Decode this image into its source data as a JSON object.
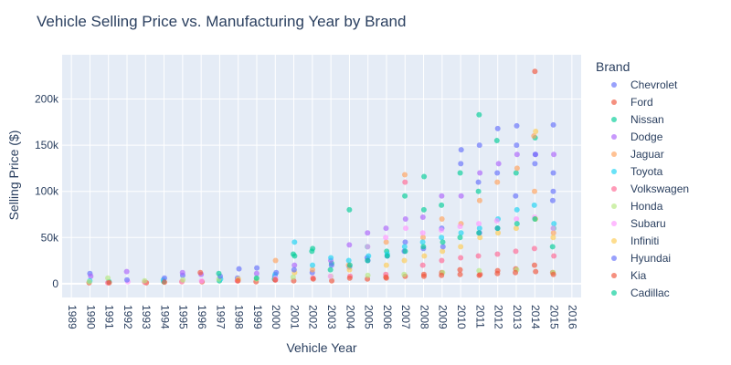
{
  "chart_data": {
    "type": "scatter",
    "title": "Vehicle Selling Price vs. Manufacturing Year by Brand",
    "xlabel": "Vehicle Year",
    "ylabel": "Selling Price ($)",
    "xlim": [
      1988.5,
      2016.5
    ],
    "ylim": [
      -15000,
      248000
    ],
    "x_ticks": [
      1989,
      1990,
      1991,
      1992,
      1993,
      1994,
      1995,
      1996,
      1997,
      1998,
      1999,
      2000,
      2001,
      2002,
      2003,
      2004,
      2005,
      2006,
      2007,
      2008,
      2009,
      2010,
      2011,
      2012,
      2013,
      2014,
      2015,
      2016
    ],
    "y_ticks": [
      0,
      50000,
      100000,
      150000,
      200000
    ],
    "y_tick_labels": [
      "0",
      "50k",
      "100k",
      "150k",
      "200k"
    ],
    "grid": true,
    "legend": {
      "title": "Brand",
      "placement": "right"
    },
    "series": [
      {
        "name": "Chevrolet",
        "color": "#636efa",
        "points": [
          [
            1990,
            11000
          ],
          [
            1995,
            9000
          ],
          [
            1998,
            6000
          ],
          [
            2000,
            8000
          ],
          [
            2002,
            12000
          ],
          [
            2004,
            18000
          ],
          [
            2005,
            28000
          ],
          [
            2006,
            30000
          ],
          [
            2007,
            45000
          ],
          [
            2008,
            38000
          ],
          [
            2009,
            60000
          ],
          [
            2010,
            145000
          ],
          [
            2011,
            150000
          ],
          [
            2011,
            110000
          ],
          [
            2012,
            168000
          ],
          [
            2012,
            120000
          ],
          [
            2013,
            150000
          ],
          [
            2013,
            95000
          ],
          [
            2014,
            130000
          ],
          [
            2015,
            120000
          ],
          [
            2015,
            90000
          ]
        ]
      },
      {
        "name": "Ford",
        "color": "#ef553b",
        "points": [
          [
            1990,
            1000
          ],
          [
            1993,
            1000
          ],
          [
            1996,
            2000
          ],
          [
            1999,
            2000
          ],
          [
            2001,
            3000
          ],
          [
            2003,
            3000
          ],
          [
            2005,
            5000
          ],
          [
            2006,
            6000
          ],
          [
            2007,
            8000
          ],
          [
            2008,
            10000
          ],
          [
            2009,
            12000
          ],
          [
            2010,
            15000
          ],
          [
            2011,
            10000
          ],
          [
            2012,
            14000
          ],
          [
            2013,
            16000
          ],
          [
            2014,
            230000
          ],
          [
            2014,
            20000
          ],
          [
            2015,
            12000
          ]
        ]
      },
      {
        "name": "Nissan",
        "color": "#00cc96",
        "points": [
          [
            1991,
            2000
          ],
          [
            1994,
            2000
          ],
          [
            1997,
            3000
          ],
          [
            2000,
            5000
          ],
          [
            2001,
            30000
          ],
          [
            2002,
            35000
          ],
          [
            2003,
            22000
          ],
          [
            2004,
            80000
          ],
          [
            2005,
            40000
          ],
          [
            2006,
            35000
          ],
          [
            2007,
            95000
          ],
          [
            2008,
            116000
          ],
          [
            2008,
            80000
          ],
          [
            2009,
            85000
          ],
          [
            2010,
            120000
          ],
          [
            2011,
            183000
          ],
          [
            2011,
            100000
          ],
          [
            2012,
            155000
          ],
          [
            2013,
            120000
          ],
          [
            2014,
            158000
          ],
          [
            2015,
            60000
          ]
        ]
      },
      {
        "name": "Dodge",
        "color": "#ab63fa",
        "points": [
          [
            1990,
            8000
          ],
          [
            1992,
            13000
          ],
          [
            1995,
            12000
          ],
          [
            1996,
            10000
          ],
          [
            1999,
            11000
          ],
          [
            2001,
            20000
          ],
          [
            2003,
            25000
          ],
          [
            2004,
            42000
          ],
          [
            2005,
            55000
          ],
          [
            2006,
            60000
          ],
          [
            2007,
            70000
          ],
          [
            2008,
            72000
          ],
          [
            2009,
            95000
          ],
          [
            2010,
            95000
          ],
          [
            2011,
            120000
          ],
          [
            2012,
            130000
          ],
          [
            2013,
            140000
          ],
          [
            2014,
            140000
          ],
          [
            2015,
            140000
          ]
        ]
      },
      {
        "name": "Jaguar",
        "color": "#ffa15a",
        "points": [
          [
            2000,
            25000
          ],
          [
            2002,
            15000
          ],
          [
            2004,
            20000
          ],
          [
            2006,
            45000
          ],
          [
            2007,
            118000
          ],
          [
            2008,
            50000
          ],
          [
            2009,
            70000
          ],
          [
            2010,
            65000
          ],
          [
            2011,
            90000
          ],
          [
            2012,
            110000
          ],
          [
            2013,
            125000
          ],
          [
            2014,
            160000
          ],
          [
            2014,
            100000
          ],
          [
            2015,
            55000
          ]
        ]
      },
      {
        "name": "Toyota",
        "color": "#19d3f3",
        "points": [
          [
            1990,
            3000
          ],
          [
            1994,
            4000
          ],
          [
            1997,
            5000
          ],
          [
            2000,
            10000
          ],
          [
            2001,
            45000
          ],
          [
            2002,
            20000
          ],
          [
            2003,
            28000
          ],
          [
            2004,
            25000
          ],
          [
            2005,
            30000
          ],
          [
            2006,
            32000
          ],
          [
            2007,
            40000
          ],
          [
            2008,
            45000
          ],
          [
            2009,
            50000
          ],
          [
            2010,
            55000
          ],
          [
            2011,
            60000
          ],
          [
            2012,
            70000
          ],
          [
            2013,
            80000
          ],
          [
            2014,
            85000
          ],
          [
            2015,
            65000
          ]
        ]
      },
      {
        "name": "Volkswagen",
        "color": "#ff6692",
        "points": [
          [
            1991,
            1000
          ],
          [
            1993,
            1500
          ],
          [
            1995,
            2000
          ],
          [
            1998,
            3000
          ],
          [
            2000,
            4000
          ],
          [
            2002,
            6000
          ],
          [
            2004,
            8000
          ],
          [
            2006,
            10000
          ],
          [
            2007,
            110000
          ],
          [
            2008,
            20000
          ],
          [
            2009,
            25000
          ],
          [
            2010,
            28000
          ],
          [
            2011,
            30000
          ],
          [
            2012,
            32000
          ],
          [
            2013,
            35000
          ],
          [
            2014,
            38000
          ],
          [
            2015,
            30000
          ]
        ]
      },
      {
        "name": "Honda",
        "color": "#b6e880",
        "points": [
          [
            1990,
            2000
          ],
          [
            1991,
            6000
          ],
          [
            1993,
            3000
          ],
          [
            1995,
            4000
          ],
          [
            1997,
            5000
          ],
          [
            1999,
            5000
          ],
          [
            2001,
            7000
          ],
          [
            2003,
            8000
          ],
          [
            2005,
            9000
          ],
          [
            2007,
            10000
          ],
          [
            2009,
            12000
          ],
          [
            2011,
            14000
          ],
          [
            2013,
            15000
          ],
          [
            2015,
            12000
          ]
        ]
      },
      {
        "name": "Subaru",
        "color": "#ff97ff",
        "points": [
          [
            1992,
            2000
          ],
          [
            1996,
            3000
          ],
          [
            2000,
            6000
          ],
          [
            2003,
            8000
          ],
          [
            2005,
            40000
          ],
          [
            2006,
            50000
          ],
          [
            2007,
            60000
          ],
          [
            2008,
            55000
          ],
          [
            2009,
            58000
          ],
          [
            2010,
            62000
          ],
          [
            2011,
            65000
          ],
          [
            2012,
            68000
          ],
          [
            2013,
            70000
          ],
          [
            2014,
            72000
          ],
          [
            2015,
            60000
          ]
        ]
      },
      {
        "name": "Infiniti",
        "color": "#fecb52",
        "points": [
          [
            1998,
            5000
          ],
          [
            2001,
            12000
          ],
          [
            2004,
            15000
          ],
          [
            2006,
            20000
          ],
          [
            2007,
            25000
          ],
          [
            2008,
            30000
          ],
          [
            2009,
            35000
          ],
          [
            2010,
            40000
          ],
          [
            2011,
            50000
          ],
          [
            2012,
            55000
          ],
          [
            2013,
            60000
          ],
          [
            2014,
            165000
          ],
          [
            2014,
            70000
          ],
          [
            2015,
            50000
          ]
        ]
      },
      {
        "name": "Hyundai",
        "color": "#636efa",
        "points": [
          [
            1992,
            4000
          ],
          [
            1994,
            6000
          ],
          [
            1997,
            8000
          ],
          [
            1998,
            16000
          ],
          [
            1999,
            17000
          ],
          [
            2000,
            12000
          ],
          [
            2001,
            15000
          ],
          [
            2003,
            20000
          ],
          [
            2005,
            25000
          ],
          [
            2007,
            35000
          ],
          [
            2009,
            40000
          ],
          [
            2010,
            130000
          ],
          [
            2011,
            55000
          ],
          [
            2012,
            60000
          ],
          [
            2013,
            171000
          ],
          [
            2014,
            140000
          ],
          [
            2015,
            172000
          ],
          [
            2015,
            100000
          ]
        ]
      },
      {
        "name": "Kia",
        "color": "#ef553b",
        "points": [
          [
            1991,
            1000
          ],
          [
            1994,
            1500
          ],
          [
            1996,
            12000
          ],
          [
            1998,
            3000
          ],
          [
            2000,
            4000
          ],
          [
            2002,
            5000
          ],
          [
            2004,
            6000
          ],
          [
            2006,
            7000
          ],
          [
            2008,
            8000
          ],
          [
            2009,
            9000
          ],
          [
            2010,
            10000
          ],
          [
            2011,
            9000
          ],
          [
            2012,
            11000
          ],
          [
            2013,
            12000
          ],
          [
            2014,
            13000
          ],
          [
            2015,
            10000
          ]
        ]
      },
      {
        "name": "Cadillac",
        "color": "#00cc96",
        "points": [
          [
            1997,
            11000
          ],
          [
            1999,
            6000
          ],
          [
            2001,
            32000
          ],
          [
            2002,
            38000
          ],
          [
            2003,
            15000
          ],
          [
            2004,
            20000
          ],
          [
            2005,
            25000
          ],
          [
            2006,
            30000
          ],
          [
            2007,
            35000
          ],
          [
            2008,
            40000
          ],
          [
            2009,
            45000
          ],
          [
            2010,
            50000
          ],
          [
            2011,
            55000
          ],
          [
            2012,
            60000
          ],
          [
            2013,
            65000
          ],
          [
            2014,
            70000
          ],
          [
            2015,
            40000
          ]
        ]
      }
    ]
  }
}
